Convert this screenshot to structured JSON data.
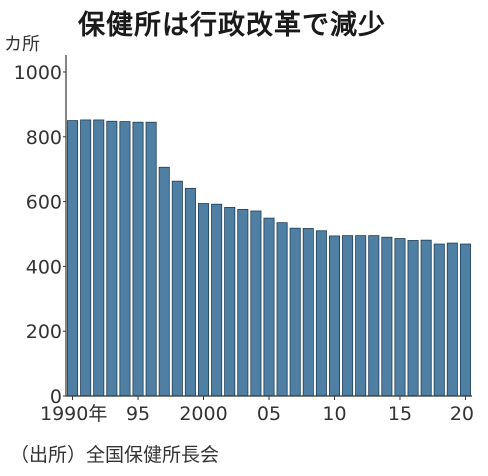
{
  "chart_data": {
    "type": "bar",
    "title": "保健所は行政改革で減少",
    "ylabel": "カ所",
    "source": "（出所）全国保健所長会",
    "ylim": [
      0,
      1000
    ],
    "yticks": [
      0,
      200,
      400,
      600,
      800,
      1000
    ],
    "x": [
      1990,
      1991,
      1992,
      1993,
      1994,
      1995,
      1996,
      1997,
      1998,
      1999,
      2000,
      2001,
      2002,
      2003,
      2004,
      2005,
      2006,
      2007,
      2008,
      2009,
      2010,
      2011,
      2012,
      2013,
      2014,
      2015,
      2016,
      2017,
      2018,
      2019,
      2020
    ],
    "values": [
      850,
      852,
      852,
      848,
      847,
      845,
      845,
      706,
      663,
      641,
      594,
      592,
      582,
      576,
      571,
      549,
      535,
      518,
      517,
      510,
      494,
      495,
      495,
      495,
      490,
      486,
      480,
      481,
      469,
      472,
      469
    ],
    "xtick_labels": [
      {
        "x": 1990,
        "label": "1990年"
      },
      {
        "x": 1995,
        "label": "95"
      },
      {
        "x": 2000,
        "label": "2000"
      },
      {
        "x": 2005,
        "label": "05"
      },
      {
        "x": 2010,
        "label": "10"
      },
      {
        "x": 2015,
        "label": "15"
      },
      {
        "x": 2020,
        "label": "20"
      }
    ],
    "bar_color": "#4f7fa3",
    "bar_edge_color": "#1f3f5a",
    "grid": false
  }
}
